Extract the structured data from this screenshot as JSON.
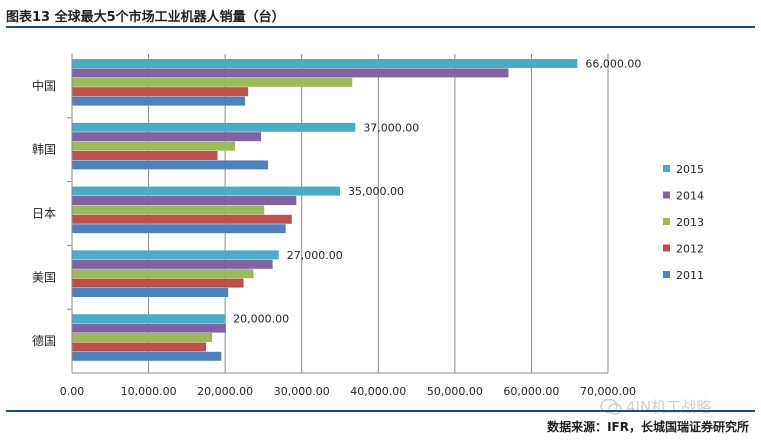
{
  "figure": {
    "title": "图表13 全球最大5个市场工业机器人销量（台）",
    "source": "数据来源：IFR，长城国瑞证券研究所",
    "watermark": "4IN机工战略"
  },
  "chart_data": {
    "type": "bar",
    "orientation": "horizontal",
    "categories": [
      "中国",
      "韩国",
      "日本",
      "美国",
      "德国"
    ],
    "series": [
      {
        "name": "2015",
        "color": "#4BACC6",
        "values": [
          66000,
          37000,
          35000,
          27000,
          20000
        ]
      },
      {
        "name": "2014",
        "color": "#8064A2",
        "values": [
          57000,
          24700,
          29300,
          26200,
          20100
        ]
      },
      {
        "name": "2013",
        "color": "#9BBB59",
        "values": [
          36600,
          21300,
          25100,
          23700,
          18300
        ]
      },
      {
        "name": "2012",
        "color": "#C0504D",
        "values": [
          23000,
          19000,
          28700,
          22400,
          17500
        ]
      },
      {
        "name": "2011",
        "color": "#4F81BD",
        "values": [
          22600,
          25600,
          27900,
          20400,
          19500
        ]
      }
    ],
    "data_labels": [
      "66,000.00",
      "37,000.00",
      "35,000.00",
      "27,000.00",
      "20,000.00"
    ],
    "xlim": [
      0,
      70000
    ],
    "x_ticks": [
      0,
      10000,
      20000,
      30000,
      40000,
      50000,
      60000,
      70000
    ],
    "x_tick_labels": [
      "0.00",
      "10,000.00",
      "20,000.00",
      "30,000.00",
      "40,000.00",
      "50,000.00",
      "60,000.00",
      "70,000.00"
    ],
    "grid": true,
    "legend_position": "right",
    "legend_order": [
      "2015",
      "2014",
      "2013",
      "2012",
      "2011"
    ]
  }
}
